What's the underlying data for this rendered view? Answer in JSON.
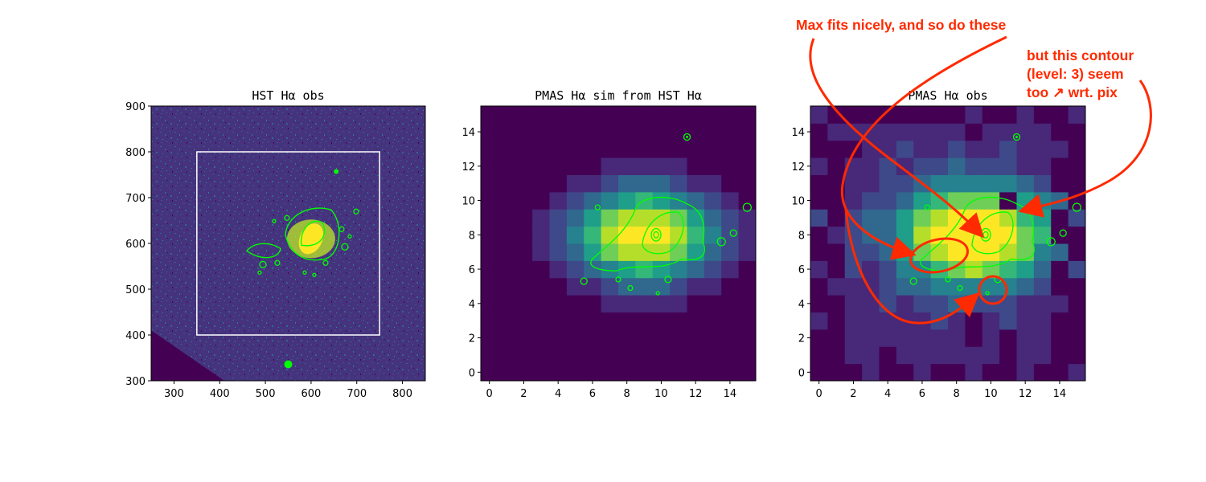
{
  "colors": {
    "viridis_dark": "#440154",
    "contour": "#00ff00",
    "annotation": "#ff2a00",
    "frame": "#000000"
  },
  "chart_data": [
    {
      "type": "heatmap",
      "title": "HST Hα obs",
      "xlim": [
        250,
        850
      ],
      "ylim": [
        300,
        900
      ],
      "xticks": [
        300,
        400,
        500,
        600,
        700,
        800
      ],
      "yticks": [
        300,
        400,
        500,
        600,
        700,
        800,
        900
      ],
      "overlay_box": {
        "x0": 350,
        "x1": 750,
        "y0": 400,
        "y1": 800,
        "color": "#ffffff"
      },
      "contour_color": "#00ff00",
      "peak": [
        600,
        610
      ]
    },
    {
      "type": "heatmap",
      "title": "PMAS Hα sim from HST Hα",
      "xlim": [
        -0.5,
        15.5
      ],
      "ylim": [
        -0.5,
        15.5
      ],
      "xticks": [
        0,
        2,
        4,
        6,
        8,
        10,
        12,
        14
      ],
      "yticks": [
        0,
        2,
        4,
        6,
        8,
        10,
        12,
        14
      ],
      "contour_color": "#00ff00",
      "peak": [
        9,
        8
      ]
    },
    {
      "type": "heatmap",
      "title": "PMAS Hα obs",
      "xlim": [
        -0.5,
        15.5
      ],
      "ylim": [
        -0.5,
        15.5
      ],
      "xticks": [
        0,
        2,
        4,
        6,
        8,
        10,
        12,
        14
      ],
      "yticks": [
        0,
        2,
        4,
        6,
        8,
        10,
        12,
        14
      ],
      "contour_color": "#00ff00",
      "peak": [
        9,
        8
      ]
    }
  ],
  "annotations": {
    "top": "Max fits nicely, and so do these",
    "right_line1": "but this contour",
    "right_line2": "(level: 3) seem",
    "right_line3": "too ↗ wrt. pix"
  }
}
